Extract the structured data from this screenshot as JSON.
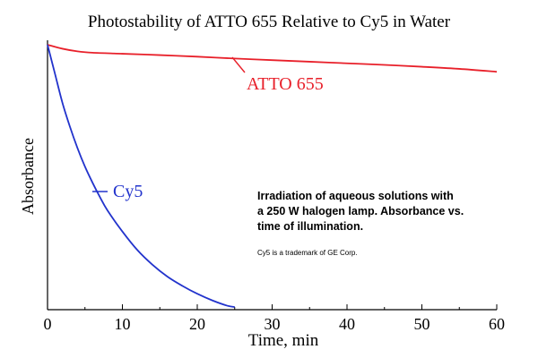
{
  "chart_data": {
    "type": "line",
    "title": "Photostability of ATTO 655 Relative to Cy5 in Water",
    "xlabel": "Time, min",
    "ylabel": "Absorbance",
    "xlim": [
      0,
      60
    ],
    "ylim": [
      0,
      1.0
    ],
    "xticks": [
      0,
      10,
      20,
      30,
      40,
      50,
      60
    ],
    "grid": false,
    "colors": {
      "atto": "#e8202a",
      "cy5": "#2233cc",
      "axis": "#000000",
      "text": "#000000"
    },
    "series": [
      {
        "name": "ATTO 655",
        "x": [
          0,
          2,
          4,
          6,
          10,
          15,
          20,
          25,
          30,
          35,
          40,
          45,
          50,
          55,
          60
        ],
        "values": [
          1.0,
          0.985,
          0.975,
          0.97,
          0.966,
          0.961,
          0.955,
          0.948,
          0.942,
          0.936,
          0.93,
          0.924,
          0.917,
          0.909,
          0.898
        ]
      },
      {
        "name": "Cy5",
        "x": [
          0,
          1,
          2,
          3,
          4,
          5,
          6,
          7,
          8,
          10,
          12,
          14,
          16,
          18,
          20,
          22,
          24,
          25
        ],
        "values": [
          1.0,
          0.89,
          0.78,
          0.69,
          0.61,
          0.54,
          0.48,
          0.425,
          0.375,
          0.295,
          0.225,
          0.17,
          0.125,
          0.09,
          0.06,
          0.035,
          0.015,
          0.01
        ]
      }
    ],
    "annotations": {
      "note_lines": [
        "Irradiation of aqueous solutions with",
        "a 250 W halogen lamp. Absorbance vs.",
        "time of illumination."
      ],
      "trademark": "Cy5 is a trademark of GE Corp."
    }
  }
}
